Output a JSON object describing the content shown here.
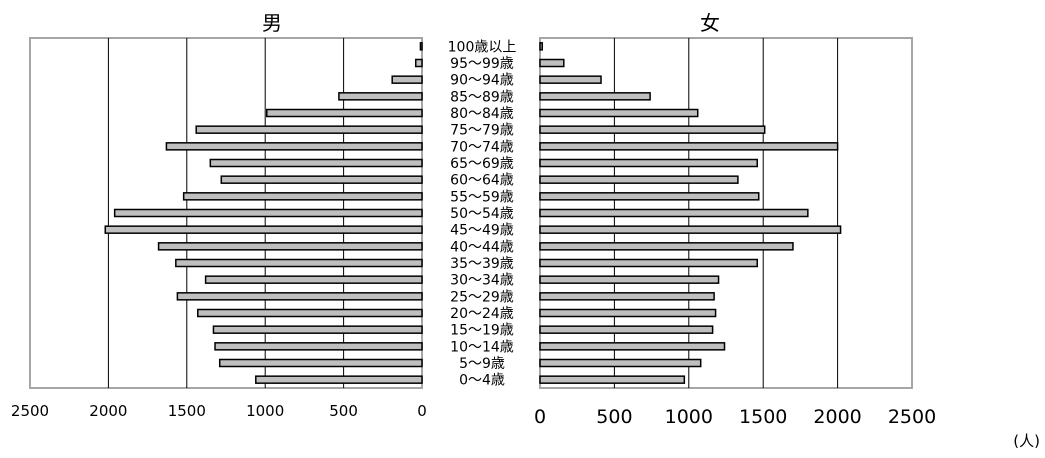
{
  "chart_data": {
    "type": "bar",
    "orientation": "horizontal",
    "layout": "population-pyramid",
    "unit": "(人)",
    "categories": [
      "0～4歳",
      "5～9歳",
      "10～14歳",
      "15～19歳",
      "20～24歳",
      "25～29歳",
      "30～34歳",
      "35～39歳",
      "40～44歳",
      "45～49歳",
      "50～54歳",
      "55～59歳",
      "60～64歳",
      "65～69歳",
      "70～74歳",
      "75～79歳",
      "80～84歳",
      "85～89歳",
      "90～94歳",
      "95～99歳",
      "100歳以上"
    ],
    "series": [
      {
        "name": "男",
        "side": "left",
        "values": [
          1060,
          1290,
          1320,
          1330,
          1430,
          1560,
          1380,
          1570,
          1680,
          2020,
          1960,
          1520,
          1280,
          1350,
          1630,
          1440,
          990,
          530,
          190,
          40,
          10
        ]
      },
      {
        "name": "女",
        "side": "right",
        "values": [
          970,
          1080,
          1240,
          1160,
          1180,
          1170,
          1200,
          1460,
          1700,
          2020,
          1800,
          1470,
          1330,
          1460,
          2000,
          1510,
          1060,
          740,
          410,
          160,
          15
        ]
      }
    ],
    "xlim": [
      0,
      2500
    ],
    "left_ticks": [
      "2500",
      "2000",
      "1500",
      "1000",
      "500",
      "0"
    ],
    "right_ticks": [
      "0",
      "500",
      "1000",
      "1500",
      "2000",
      "2500"
    ],
    "grid": true,
    "bar_color": "#bfbfbf",
    "edge_color": "#000000",
    "frame_color": "#a6a6a6"
  }
}
